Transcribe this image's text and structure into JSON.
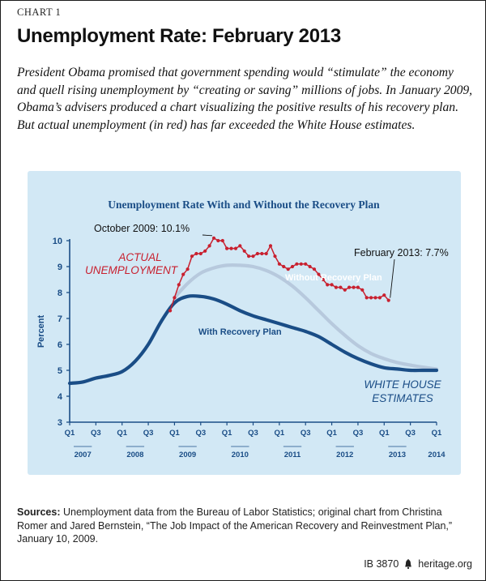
{
  "header": {
    "chart_number": "CHART 1",
    "title": "Unemployment Rate: February 2013",
    "intro": "President Obama promised that government spending would “stimulate” the economy and quell rising unemployment by “creating or saving” millions of jobs. In January 2009, Obama’s advisers produced a chart visualizing the positive results of his recovery plan. But actual unemployment (in red) has far exceeded the White House estimates."
  },
  "chart_data": {
    "type": "line",
    "title": "Unemployment Rate With and Without the Recovery Plan",
    "ylabel": "Percent",
    "ylim": [
      3,
      10
    ],
    "yticks": [
      "3",
      "4",
      "5",
      "6",
      "7",
      "8",
      "9",
      "10"
    ],
    "xlim": [
      2007.0,
      2014.0
    ],
    "x_tick_labels": [
      "Q1",
      "Q3",
      "Q1",
      "Q3",
      "Q1",
      "Q3",
      "Q1",
      "Q3",
      "Q1",
      "Q3",
      "Q1",
      "Q3",
      "Q1",
      "Q3",
      "Q1"
    ],
    "x_year_labels": [
      "2007",
      "2008",
      "2009",
      "2010",
      "2011",
      "2012",
      "2013",
      "2014"
    ],
    "grid": false,
    "colors": {
      "actual": "#c8202f",
      "without_plan": "#b7c9dd",
      "with_plan": "#1a4d86",
      "axis": "#1a4d86",
      "panel_bg": "#d2e8f5"
    },
    "series": [
      {
        "name": "ACTUAL UNEMPLOYMENT",
        "x": [
          2008.917,
          2009.0,
          2009.083,
          2009.167,
          2009.25,
          2009.333,
          2009.417,
          2009.5,
          2009.583,
          2009.667,
          2009.75,
          2009.833,
          2009.917,
          2010.0,
          2010.083,
          2010.167,
          2010.25,
          2010.333,
          2010.417,
          2010.5,
          2010.583,
          2010.667,
          2010.75,
          2010.833,
          2010.917,
          2011.0,
          2011.083,
          2011.167,
          2011.25,
          2011.333,
          2011.417,
          2011.5,
          2011.583,
          2011.667,
          2011.75,
          2011.833,
          2011.917,
          2012.0,
          2012.083,
          2012.167,
          2012.25,
          2012.333,
          2012.417,
          2012.5,
          2012.583,
          2012.667,
          2012.75,
          2012.833,
          2012.917,
          2013.0,
          2013.083
        ],
        "values": [
          7.3,
          7.8,
          8.3,
          8.7,
          8.9,
          9.4,
          9.5,
          9.5,
          9.6,
          9.8,
          10.1,
          10.0,
          10.0,
          9.7,
          9.7,
          9.7,
          9.8,
          9.6,
          9.4,
          9.4,
          9.5,
          9.5,
          9.5,
          9.8,
          9.4,
          9.1,
          9.0,
          8.9,
          9.0,
          9.1,
          9.1,
          9.1,
          9.0,
          8.9,
          8.7,
          8.5,
          8.3,
          8.3,
          8.2,
          8.2,
          8.1,
          8.2,
          8.2,
          8.2,
          8.1,
          7.8,
          7.8,
          7.8,
          7.8,
          7.9,
          7.7
        ]
      },
      {
        "name": "Without Recovery Plan",
        "x": [
          2009.0,
          2009.25,
          2009.5,
          2009.75,
          2010.0,
          2010.25,
          2010.5,
          2010.75,
          2011.0,
          2011.25,
          2011.5,
          2011.75,
          2012.0,
          2012.25,
          2012.5,
          2012.75,
          2013.0,
          2013.25,
          2013.5,
          2013.75,
          2014.0
        ],
        "values": [
          7.8,
          8.35,
          8.75,
          8.95,
          9.05,
          9.05,
          9.0,
          8.85,
          8.6,
          8.25,
          7.8,
          7.3,
          6.8,
          6.35,
          5.95,
          5.65,
          5.45,
          5.3,
          5.2,
          5.12,
          5.05
        ]
      },
      {
        "name": "With Recovery Plan",
        "x": [
          2007.0,
          2007.25,
          2007.5,
          2007.75,
          2008.0,
          2008.25,
          2008.5,
          2008.75,
          2009.0,
          2009.25,
          2009.5,
          2009.75,
          2010.0,
          2010.25,
          2010.5,
          2010.75,
          2011.0,
          2011.25,
          2011.5,
          2011.75,
          2012.0,
          2012.25,
          2012.5,
          2012.75,
          2013.0,
          2013.25,
          2013.5,
          2013.75,
          2014.0
        ],
        "values": [
          4.5,
          4.55,
          4.7,
          4.8,
          4.95,
          5.35,
          6.0,
          6.9,
          7.6,
          7.85,
          7.85,
          7.75,
          7.55,
          7.3,
          7.1,
          6.95,
          6.8,
          6.65,
          6.5,
          6.3,
          6.0,
          5.7,
          5.45,
          5.25,
          5.1,
          5.05,
          5.0,
          5.0,
          5.0
        ]
      }
    ],
    "annotations": [
      {
        "text": "October 2009: 10.1%",
        "x": 2009.75,
        "y": 10.1
      },
      {
        "text": "February 2013: 7.7%",
        "x": 2013.083,
        "y": 7.7
      }
    ],
    "series_labels": {
      "actual_line1": "ACTUAL",
      "actual_line2": "UNEMPLOYMENT",
      "without_plan": "Without Recovery Plan",
      "with_plan": "With Recovery Plan",
      "white_house_line1": "WHITE HOUSE",
      "white_house_line2": "ESTIMATES"
    }
  },
  "footer": {
    "sources_label": "Sources:",
    "sources_text": " Unemployment data from the Bureau of Labor Statistics; original chart from Christina Romer and Jared Bernstein, “The Job Impact of the American Recovery and Reinvestment Plan,” January 10, 2009.",
    "brief_id": "IB 3870",
    "site": "heritage.org",
    "logo_icon": "liberty-bell-icon"
  }
}
